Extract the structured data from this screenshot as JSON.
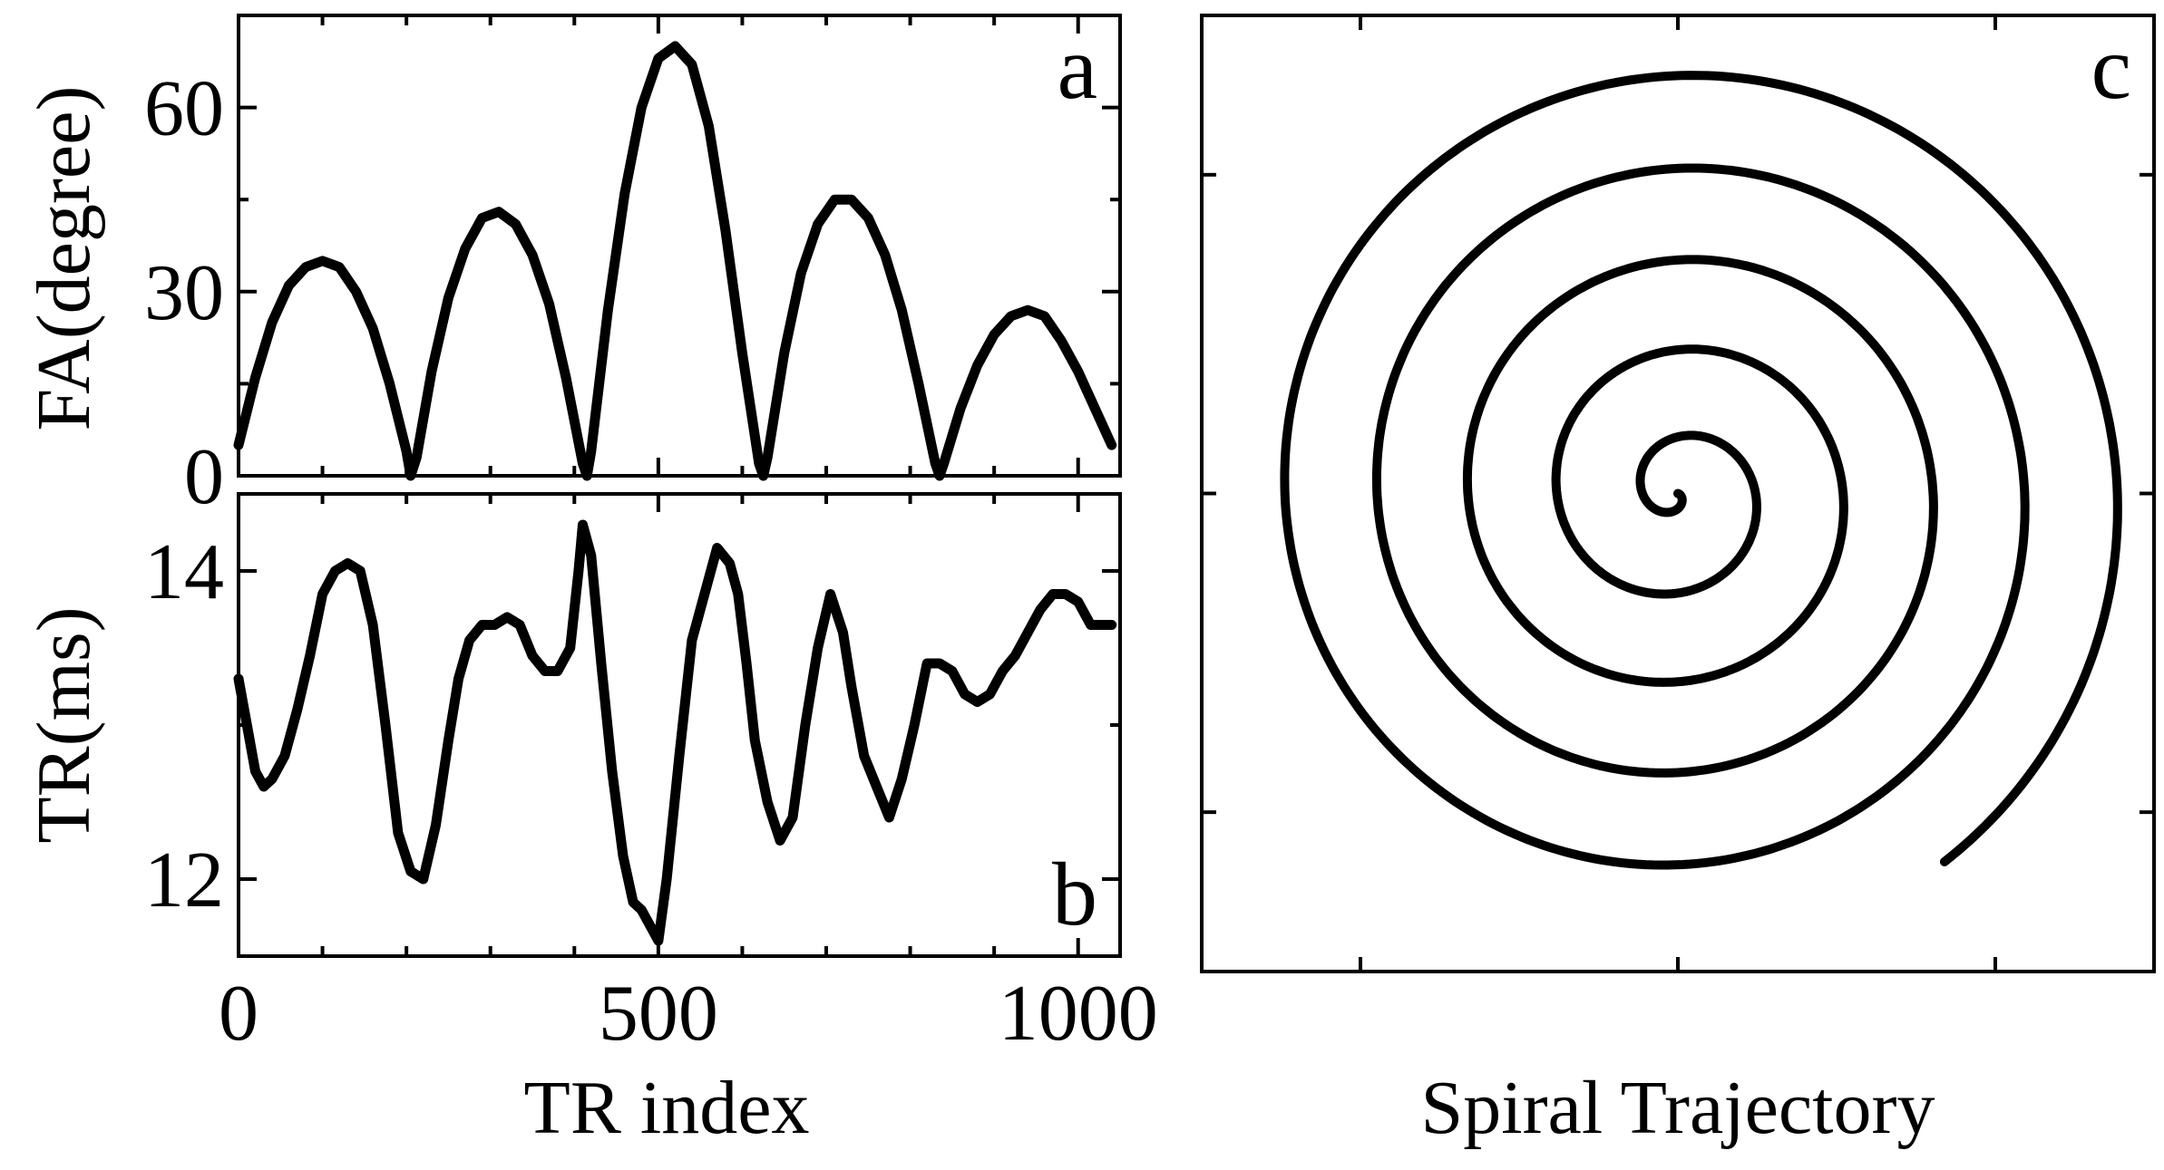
{
  "chart_data": [
    {
      "panel": "a",
      "type": "line",
      "ylabel": "FA(degree)",
      "xlabel": "",
      "xlim": [
        0,
        1050
      ],
      "ylim": [
        0,
        75
      ],
      "yticks": [
        0,
        30,
        60
      ],
      "ytick_labels": [
        "0",
        "30",
        "60"
      ],
      "xticks": [
        0,
        500,
        1000
      ],
      "color": "#000000",
      "x": [
        0,
        20,
        40,
        60,
        80,
        100,
        120,
        140,
        160,
        180,
        200,
        205,
        212,
        230,
        250,
        270,
        290,
        310,
        330,
        350,
        370,
        390,
        410,
        415,
        420,
        440,
        460,
        480,
        500,
        520,
        540,
        560,
        580,
        600,
        620,
        625,
        630,
        650,
        670,
        690,
        710,
        730,
        750,
        770,
        790,
        810,
        830,
        835,
        840,
        860,
        880,
        900,
        920,
        940,
        960,
        980,
        1000,
        1020,
        1040
      ],
      "y": [
        5,
        16,
        25,
        31,
        34,
        35,
        34,
        30,
        24,
        15,
        4,
        0,
        3,
        17,
        29,
        37,
        42,
        43,
        41,
        36,
        28,
        16,
        2,
        0,
        4,
        27,
        46,
        60,
        68,
        70,
        67,
        57,
        40,
        20,
        2,
        0,
        3,
        20,
        33,
        41,
        45,
        45,
        42,
        36,
        27,
        15,
        2,
        0,
        2,
        11,
        18,
        23,
        26,
        27,
        26,
        22,
        17,
        11,
        5
      ]
    },
    {
      "panel": "b",
      "type": "line",
      "ylabel": "TR(ms)",
      "xlabel": "TR index",
      "xlim": [
        0,
        1050
      ],
      "ylim": [
        11.5,
        14.5
      ],
      "yticks": [
        12,
        14
      ],
      "ytick_labels": [
        "12",
        "14"
      ],
      "xticks": [
        0,
        500,
        1000
      ],
      "xtick_labels": [
        "0",
        "500",
        "1000"
      ],
      "color": "#000000",
      "x": [
        0,
        10,
        20,
        30,
        40,
        55,
        70,
        85,
        100,
        115,
        130,
        145,
        160,
        175,
        190,
        205,
        220,
        235,
        250,
        262,
        275,
        290,
        305,
        320,
        335,
        350,
        365,
        380,
        395,
        405,
        410,
        420,
        432,
        445,
        458,
        470,
        480,
        490,
        500,
        510,
        525,
        540,
        555,
        570,
        585,
        595,
        605,
        615,
        630,
        645,
        660,
        675,
        690,
        705,
        720,
        730,
        745,
        760,
        775,
        790,
        805,
        820,
        835,
        850,
        865,
        880,
        895,
        910,
        925,
        940,
        955,
        970,
        985,
        1000,
        1015,
        1030,
        1040
      ],
      "y": [
        13.3,
        13.0,
        12.7,
        12.6,
        12.65,
        12.8,
        13.1,
        13.45,
        13.85,
        14.0,
        14.05,
        14.0,
        13.65,
        13.0,
        12.3,
        12.05,
        12.0,
        12.35,
        12.9,
        13.3,
        13.55,
        13.65,
        13.65,
        13.7,
        13.65,
        13.45,
        13.35,
        13.35,
        13.5,
        14.0,
        14.3,
        14.1,
        13.4,
        12.7,
        12.15,
        11.85,
        11.8,
        11.7,
        11.6,
        12.0,
        12.8,
        13.55,
        13.85,
        14.15,
        14.05,
        13.85,
        13.4,
        12.9,
        12.5,
        12.25,
        12.4,
        13.0,
        13.5,
        13.85,
        13.6,
        13.25,
        12.8,
        12.6,
        12.4,
        12.65,
        13.0,
        13.4,
        13.4,
        13.35,
        13.2,
        13.15,
        13.2,
        13.35,
        13.45,
        13.6,
        13.75,
        13.85,
        13.85,
        13.8,
        13.65,
        13.65,
        13.65
      ]
    },
    {
      "panel": "c",
      "type": "line",
      "xlabel": "Spiral Trajectory",
      "ylabel": "",
      "xlim": [
        -1.05,
        1.05
      ],
      "ylim": [
        -1.05,
        1.05
      ],
      "turns": 5.1,
      "start_radius": 0.0,
      "end_radius": 1.0,
      "color": "#000000"
    }
  ],
  "labels": {
    "panel_a": "a",
    "panel_b": "b",
    "panel_c": "c",
    "ylabel_a": "FA(degree)",
    "ylabel_b": "TR(ms)",
    "xlabel_ab": "TR index",
    "xlabel_c": "Spiral Trajectory"
  }
}
